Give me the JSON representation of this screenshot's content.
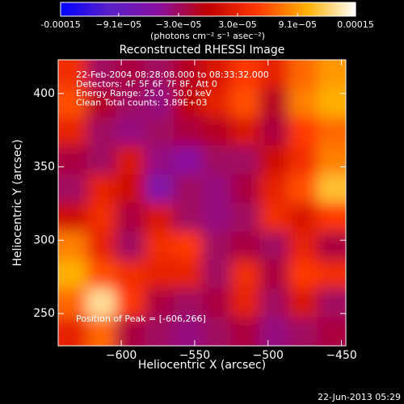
{
  "chart_data": {
    "type": "heatmap",
    "title": "Reconstructed RHESSI Image",
    "colorbar_label": "(photons cm⁻² s⁻¹ asec⁻²)",
    "xlabel": "Heliocentric X (arcsec)",
    "ylabel": "Heliocentric Y (arcsec)",
    "annotations": [
      "22-Feb-2004 08:28:08.000 to 08:33:32.000",
      "Detectors: 4F 5F 6F 7F 8F, Att 0",
      "Energy Range: 25.0 - 50.0 keV",
      "Clean     Total counts: 3.89E+03"
    ],
    "peak_label": "Position of Peak = [-606,266]",
    "footer": "22-Jun-2013 05:29",
    "xlim": [
      -643,
      -447
    ],
    "ylim": [
      228,
      423
    ],
    "xticks": [
      {
        "value": -600,
        "label": "−600"
      },
      {
        "value": -550,
        "label": "−550"
      },
      {
        "value": -500,
        "label": "−500"
      },
      {
        "value": -450,
        "label": "−450"
      }
    ],
    "yticks": [
      250,
      300,
      350,
      400
    ],
    "clim": [
      -0.00015,
      0.00015
    ],
    "cticks": [
      -0.00015,
      {
        "value": -9.1e-05,
        "label": "−9.1e−05"
      },
      {
        "value": -3e-05,
        "label": "−3.0e−05"
      },
      {
        "value": 3e-05,
        "label": "3.0e−05"
      },
      {
        "value": 9.1e-05,
        "label": "9.1e−05"
      },
      0.00015
    ],
    "colormap": [
      "#0000ff",
      "#5a20c8",
      "#8a10a0",
      "#c00000",
      "#ff3800",
      "#ffb000",
      "#ffffff"
    ],
    "z": [
      [
        4e-05,
        -3e-05,
        -2e-05,
        -3e-05,
        -1e-05,
        2e-05,
        5e-05,
        3e-05,
        7e-05,
        9e-05
      ],
      [
        6e-05,
        -1e-05,
        -3e-05,
        -4e-05,
        0,
        3e-05,
        6e-05,
        -1e-05,
        8e-05,
        0.0001
      ],
      [
        3e-05,
        -3e-05,
        -4e-05,
        -3e-05,
        -2e-05,
        -1e-05,
        2e-05,
        -2e-05,
        5e-05,
        7e-05
      ],
      [
        -2e-05,
        -3e-05,
        2e-05,
        -4e-05,
        -5e-05,
        -3e-05,
        -3e-05,
        1e-05,
        4e-05,
        8e-05
      ],
      [
        -3e-05,
        3e-05,
        1e-05,
        -6e-05,
        -3e-05,
        -4e-05,
        -2e-05,
        3e-05,
        6e-05,
        0.00011
      ],
      [
        1e-05,
        4e-05,
        -2e-05,
        2e-05,
        -3e-05,
        -4e-05,
        -3e-05,
        4e-05,
        2e-05,
        5e-05
      ],
      [
        8e-05,
        3e-05,
        -3e-05,
        4e-05,
        5e-05,
        -3e-05,
        -2e-05,
        -3e-05,
        3e-05,
        -2e-05
      ],
      [
        0.0001,
        6e-05,
        4e-05,
        3e-05,
        3e-05,
        -3e-05,
        4e-05,
        -2e-05,
        5e-05,
        4e-05
      ],
      [
        7e-05,
        0.00013,
        5e-05,
        -2e-05,
        -3e-05,
        -2e-05,
        3e-05,
        -3e-05,
        2e-05,
        -3e-05
      ],
      [
        3e-05,
        7e-05,
        -2e-05,
        -3e-05,
        -4e-05,
        -3e-05,
        -2e-05,
        -4e-05,
        -3e-05,
        -2e-05
      ]
    ]
  }
}
